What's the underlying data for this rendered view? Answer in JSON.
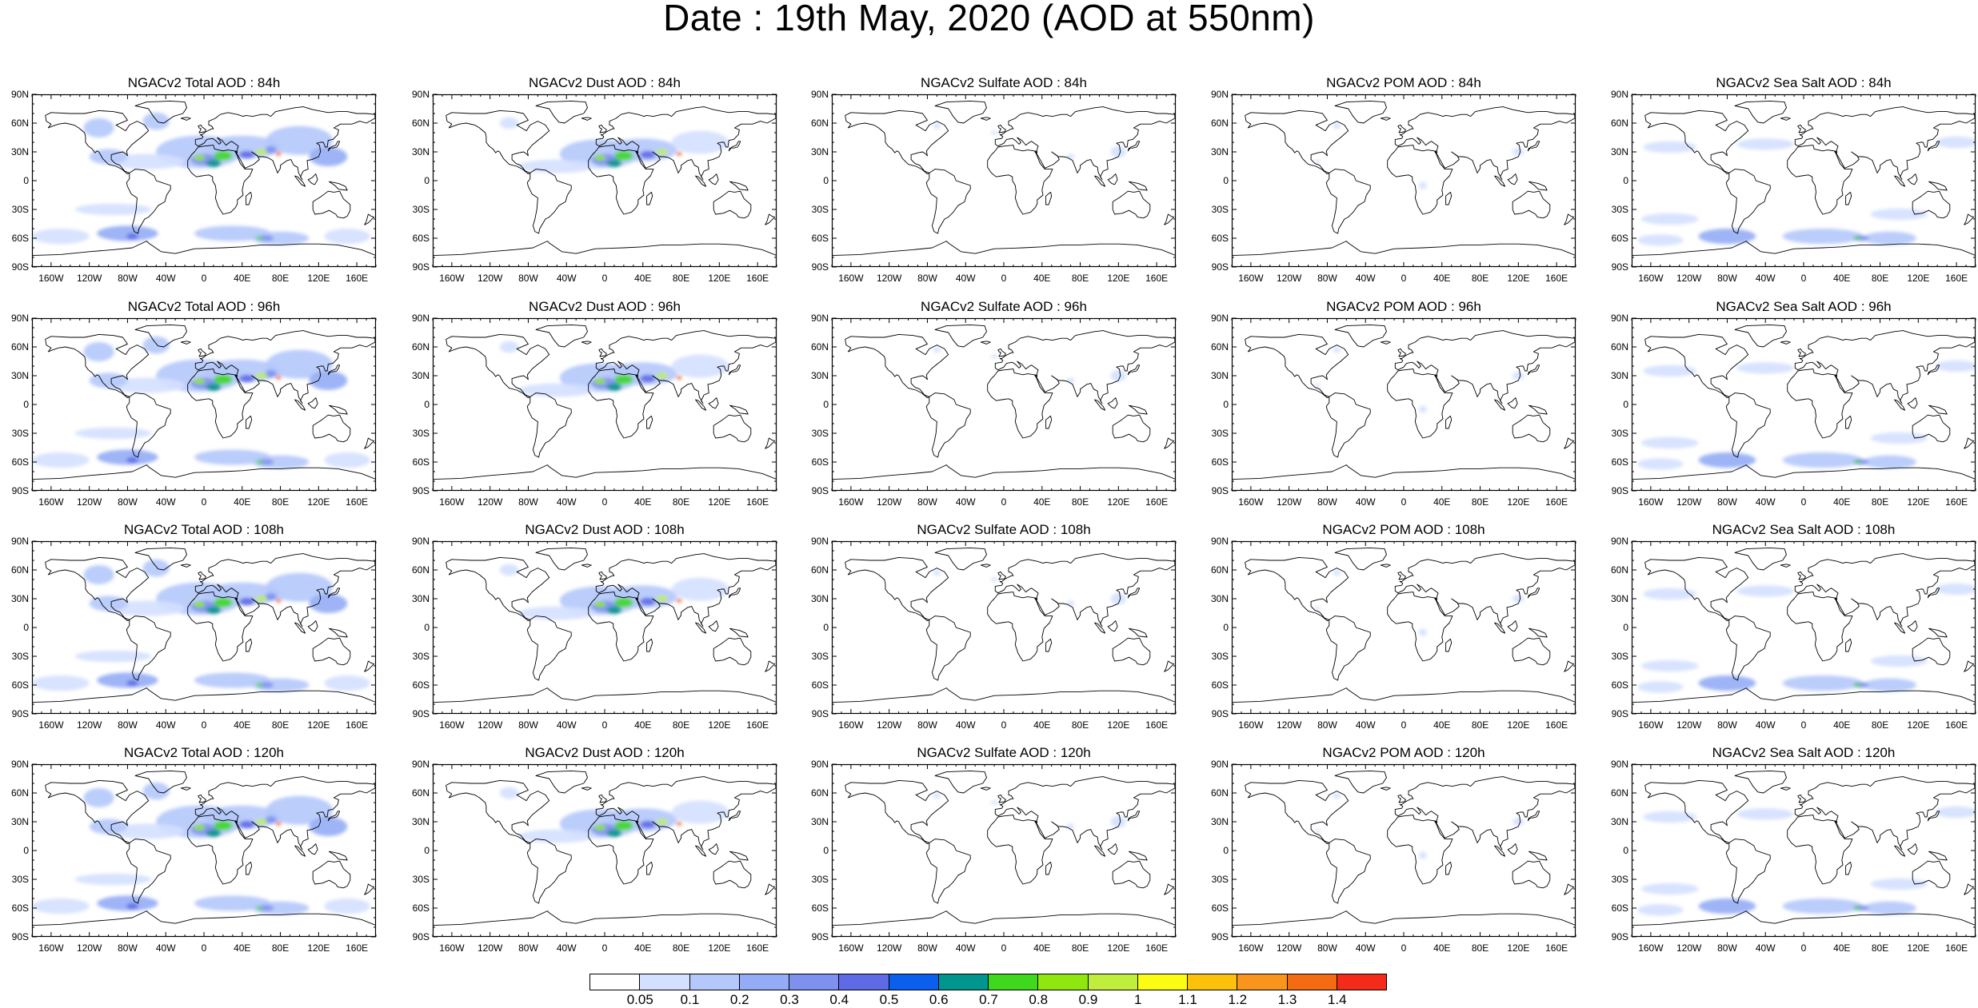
{
  "title": "Date : 19th May, 2020 (AOD at 550nm)",
  "lat_ticks": [
    "90N",
    "60N",
    "30N",
    "0",
    "30S",
    "60S",
    "90S"
  ],
  "lon_ticks": [
    "160W",
    "120W",
    "80W",
    "40W",
    "0",
    "40E",
    "80E",
    "120E",
    "160E"
  ],
  "colorbar": {
    "levels": [
      "0.05",
      "0.1",
      "0.2",
      "0.3",
      "0.4",
      "0.5",
      "0.6",
      "0.7",
      "0.8",
      "0.9",
      "1",
      "1.1",
      "1.2",
      "1.3",
      "1.4"
    ],
    "colors": [
      "#ffffff",
      "#d4e0ff",
      "#b4c8fb",
      "#94acf5",
      "#7f91ef",
      "#5e6ae6",
      "#0a5fec",
      "#00958f",
      "#3fd81c",
      "#8ee80f",
      "#bfef3c",
      "#fbfb13",
      "#fcc20b",
      "#f9951c",
      "#f46b12",
      "#f42b1b"
    ]
  },
  "rows": [
    {
      "panels": [
        {
          "title": "NGACv2 Total AOD : 84h",
          "species": "total"
        },
        {
          "title": "NGACv2 Dust AOD : 84h",
          "species": "dust"
        },
        {
          "title": "NGACv2 Sulfate AOD : 84h",
          "species": "sulfate"
        },
        {
          "title": "NGACv2 POM AOD : 84h",
          "species": "pom"
        },
        {
          "title": "NGACv2 Sea Salt AOD : 84h",
          "species": "seasalt"
        }
      ]
    },
    {
      "panels": [
        {
          "title": "NGACv2 Total AOD : 96h",
          "species": "total"
        },
        {
          "title": "NGACv2 Dust AOD : 96h",
          "species": "dust"
        },
        {
          "title": "NGACv2 Sulfate AOD : 96h",
          "species": "sulfate"
        },
        {
          "title": "NGACv2 POM AOD : 96h",
          "species": "pom"
        },
        {
          "title": "NGACv2 Sea Salt AOD : 96h",
          "species": "seasalt"
        }
      ]
    },
    {
      "panels": [
        {
          "title": "NGACv2 Total AOD : 108h",
          "species": "total"
        },
        {
          "title": "NGACv2 Dust AOD : 108h",
          "species": "dust"
        },
        {
          "title": "NGACv2 Sulfate AOD : 108h",
          "species": "sulfate"
        },
        {
          "title": "NGACv2 POM AOD : 108h",
          "species": "pom"
        },
        {
          "title": "NGACv2 Sea Salt AOD : 108h",
          "species": "seasalt"
        }
      ]
    },
    {
      "panels": [
        {
          "title": "NGACv2 Total AOD : 120h",
          "species": "total"
        },
        {
          "title": "NGACv2 Dust AOD : 120h",
          "species": "dust"
        },
        {
          "title": "NGACv2 Sulfate AOD : 120h",
          "species": "sulfate"
        },
        {
          "title": "NGACv2 POM AOD : 120h",
          "species": "pom"
        },
        {
          "title": "NGACv2 Sea Salt  AOD : 120h",
          "species": "seasalt"
        }
      ]
    }
  ]
}
